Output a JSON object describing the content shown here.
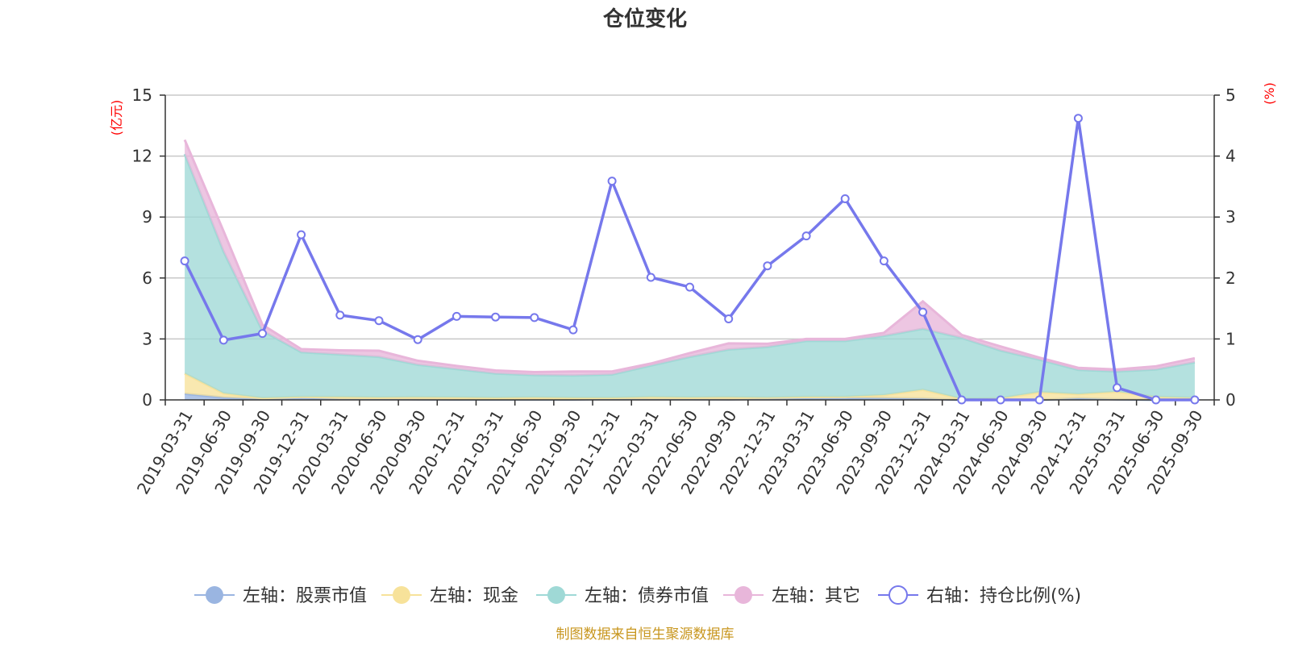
{
  "chart_data": {
    "type": "area",
    "title": "仓位变化",
    "left_axis_unit": "(亿元)",
    "right_axis_unit": "(%)",
    "ylim_left": [
      0,
      15
    ],
    "yticks_left": [
      "0",
      "3",
      "6",
      "9",
      "12",
      "15"
    ],
    "ylim_right": [
      0,
      5
    ],
    "yticks_right": [
      "0",
      "1",
      "2",
      "3",
      "4",
      "5"
    ],
    "grid": true,
    "legend_position": "bottom",
    "stacked": true,
    "x": [
      "2019-03-31",
      "2019-06-30",
      "2019-09-30",
      "2019-12-31",
      "2020-03-31",
      "2020-06-30",
      "2020-09-30",
      "2020-12-31",
      "2021-03-31",
      "2021-06-30",
      "2021-09-30",
      "2021-12-31",
      "2022-03-31",
      "2022-06-30",
      "2022-09-30",
      "2022-12-31",
      "2023-03-31",
      "2023-06-30",
      "2023-09-30",
      "2023-12-31",
      "2024-03-31",
      "2024-06-30",
      "2024-09-30",
      "2024-12-31",
      "2025-03-31",
      "2025-06-30",
      "2025-09-30"
    ],
    "series": [
      {
        "name": "左轴：股票市值",
        "axis": "left",
        "kind": "area",
        "color": "#9ab5e1",
        "values": [
          0.3,
          0.12,
          0.04,
          0.1,
          0.04,
          0.04,
          0.03,
          0.02,
          0.02,
          0.02,
          0.02,
          0.05,
          0.04,
          0.04,
          0.03,
          0.06,
          0.08,
          0.1,
          0.09,
          0.07,
          0.0,
          0.0,
          0.0,
          0.08,
          0.03,
          0.0,
          0.0
        ]
      },
      {
        "name": "左轴：现金",
        "axis": "left",
        "kind": "area",
        "color": "#f7e29a",
        "values": [
          1.0,
          0.2,
          0.05,
          0.05,
          0.1,
          0.08,
          0.1,
          0.1,
          0.08,
          0.1,
          0.08,
          0.05,
          0.1,
          0.08,
          0.1,
          0.05,
          0.07,
          0.05,
          0.15,
          0.43,
          0.05,
          0.08,
          0.38,
          0.2,
          0.37,
          0.15,
          0.1
        ]
      },
      {
        "name": "左轴：债券市值",
        "axis": "left",
        "kind": "area",
        "color": "#9fd9d6",
        "values": [
          10.8,
          6.98,
          3.31,
          2.2,
          2.1,
          2.0,
          1.6,
          1.4,
          1.2,
          1.1,
          1.1,
          1.15,
          1.55,
          2.0,
          2.35,
          2.5,
          2.75,
          2.75,
          2.91,
          3.0,
          3.0,
          2.35,
          1.6,
          1.2,
          1.0,
          1.35,
          1.75
        ]
      },
      {
        "name": "左轴：其它",
        "axis": "left",
        "kind": "area",
        "color": "#e8b6da",
        "values": [
          0.7,
          1.0,
          0.3,
          0.15,
          0.2,
          0.3,
          0.2,
          0.15,
          0.15,
          0.15,
          0.2,
          0.15,
          0.1,
          0.18,
          0.3,
          0.15,
          0.1,
          0.1,
          0.15,
          1.35,
          0.15,
          0.2,
          0.1,
          0.1,
          0.1,
          0.15,
          0.2
        ]
      },
      {
        "name": "右轴：持仓比例(%)",
        "axis": "right",
        "kind": "line",
        "color": "#7678ec",
        "values": [
          2.28,
          0.98,
          1.09,
          2.71,
          1.39,
          1.3,
          0.99,
          1.37,
          1.36,
          1.35,
          1.15,
          3.59,
          2.01,
          1.85,
          1.33,
          2.2,
          2.69,
          3.3,
          2.28,
          1.44,
          0.0,
          0.0,
          0.0,
          4.62,
          0.2,
          0.0,
          0.0
        ]
      }
    ]
  },
  "source_note": "制图数据来自恒生聚源数据库"
}
